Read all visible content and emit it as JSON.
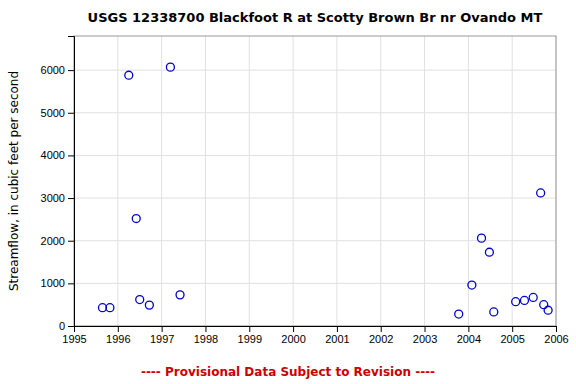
{
  "chart_data": {
    "type": "scatter",
    "title": "USGS 12338700 Blackfoot R at Scotty Brown Br nr Ovando MT",
    "ylabel": "Streamflow, in cubic feet per second",
    "annotations": [
      {
        "text": "---- Provisional Data Subject to Revision ----",
        "color": "#cc0000"
      }
    ],
    "x": [
      1995.65,
      1995.82,
      1996.25,
      1996.42,
      1996.5,
      1996.72,
      1997.2,
      1997.42,
      2003.78,
      2004.08,
      2004.3,
      2004.48,
      2004.58,
      2005.08,
      2005.28,
      2005.48,
      2005.65,
      2005.72,
      2005.82
    ],
    "values": [
      430,
      430,
      5880,
      2520,
      620,
      490,
      6070,
      730,
      280,
      960,
      2060,
      1730,
      330,
      570,
      600,
      670,
      3120,
      500,
      370
    ],
    "color": "#0000cc",
    "marker": "circle",
    "xlim": [
      1995,
      2006
    ],
    "ylim": [
      0,
      6800
    ],
    "xticks": [
      1995,
      1996,
      1997,
      1998,
      1999,
      2000,
      2001,
      2002,
      2003,
      2004,
      2005,
      2006
    ],
    "yticks": [
      0,
      1000,
      2000,
      3000,
      4000,
      5000,
      6000
    ],
    "grid": true
  }
}
